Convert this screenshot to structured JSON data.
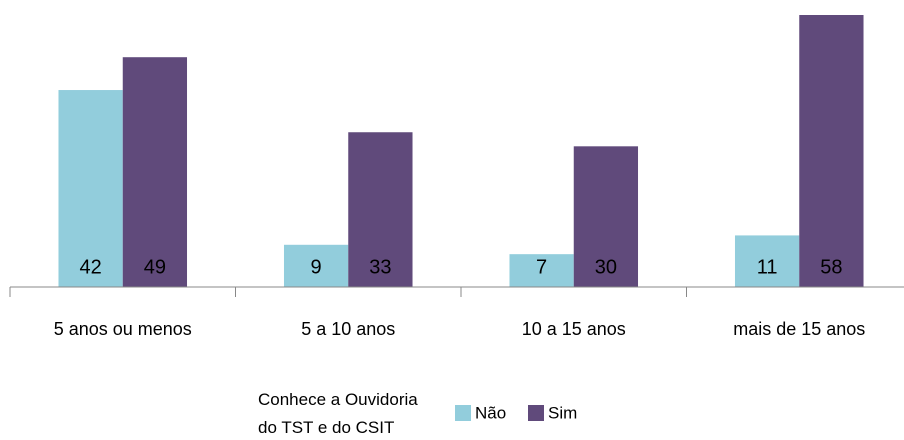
{
  "chart_data": {
    "type": "bar",
    "categories": [
      "5 anos ou menos",
      "5 a 10 anos",
      "10 a 15 anos",
      "mais de 15 anos"
    ],
    "series": [
      {
        "name": "Não",
        "color": "#92cddc",
        "values": [
          42,
          9,
          7,
          11
        ]
      },
      {
        "name": "Sim",
        "color": "#604a7b",
        "values": [
          49,
          33,
          30,
          58
        ]
      }
    ],
    "ylim": [
      0,
      58
    ],
    "legend_title": "Conhece a Ouvidoria do TST e do CSIT",
    "legend_position": "bottom"
  }
}
